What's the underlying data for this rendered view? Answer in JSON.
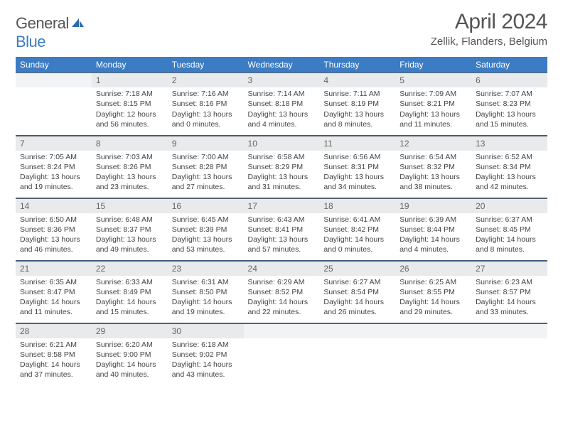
{
  "logo": {
    "text1": "General",
    "text2": "Blue"
  },
  "title": "April 2024",
  "location": "Zellik, Flanders, Belgium",
  "colors": {
    "header_bg": "#3b7cc4",
    "daynum_bg": "#e9eaeb",
    "text": "#444444",
    "rule": "#3b5a7a"
  },
  "day_headers": [
    "Sunday",
    "Monday",
    "Tuesday",
    "Wednesday",
    "Thursday",
    "Friday",
    "Saturday"
  ],
  "weeks": [
    [
      {
        "n": "",
        "sr": "",
        "ss": "",
        "dl": ""
      },
      {
        "n": "1",
        "sr": "Sunrise: 7:18 AM",
        "ss": "Sunset: 8:15 PM",
        "dl": "Daylight: 12 hours and 56 minutes."
      },
      {
        "n": "2",
        "sr": "Sunrise: 7:16 AM",
        "ss": "Sunset: 8:16 PM",
        "dl": "Daylight: 13 hours and 0 minutes."
      },
      {
        "n": "3",
        "sr": "Sunrise: 7:14 AM",
        "ss": "Sunset: 8:18 PM",
        "dl": "Daylight: 13 hours and 4 minutes."
      },
      {
        "n": "4",
        "sr": "Sunrise: 7:11 AM",
        "ss": "Sunset: 8:19 PM",
        "dl": "Daylight: 13 hours and 8 minutes."
      },
      {
        "n": "5",
        "sr": "Sunrise: 7:09 AM",
        "ss": "Sunset: 8:21 PM",
        "dl": "Daylight: 13 hours and 11 minutes."
      },
      {
        "n": "6",
        "sr": "Sunrise: 7:07 AM",
        "ss": "Sunset: 8:23 PM",
        "dl": "Daylight: 13 hours and 15 minutes."
      }
    ],
    [
      {
        "n": "7",
        "sr": "Sunrise: 7:05 AM",
        "ss": "Sunset: 8:24 PM",
        "dl": "Daylight: 13 hours and 19 minutes."
      },
      {
        "n": "8",
        "sr": "Sunrise: 7:03 AM",
        "ss": "Sunset: 8:26 PM",
        "dl": "Daylight: 13 hours and 23 minutes."
      },
      {
        "n": "9",
        "sr": "Sunrise: 7:00 AM",
        "ss": "Sunset: 8:28 PM",
        "dl": "Daylight: 13 hours and 27 minutes."
      },
      {
        "n": "10",
        "sr": "Sunrise: 6:58 AM",
        "ss": "Sunset: 8:29 PM",
        "dl": "Daylight: 13 hours and 31 minutes."
      },
      {
        "n": "11",
        "sr": "Sunrise: 6:56 AM",
        "ss": "Sunset: 8:31 PM",
        "dl": "Daylight: 13 hours and 34 minutes."
      },
      {
        "n": "12",
        "sr": "Sunrise: 6:54 AM",
        "ss": "Sunset: 8:32 PM",
        "dl": "Daylight: 13 hours and 38 minutes."
      },
      {
        "n": "13",
        "sr": "Sunrise: 6:52 AM",
        "ss": "Sunset: 8:34 PM",
        "dl": "Daylight: 13 hours and 42 minutes."
      }
    ],
    [
      {
        "n": "14",
        "sr": "Sunrise: 6:50 AM",
        "ss": "Sunset: 8:36 PM",
        "dl": "Daylight: 13 hours and 46 minutes."
      },
      {
        "n": "15",
        "sr": "Sunrise: 6:48 AM",
        "ss": "Sunset: 8:37 PM",
        "dl": "Daylight: 13 hours and 49 minutes."
      },
      {
        "n": "16",
        "sr": "Sunrise: 6:45 AM",
        "ss": "Sunset: 8:39 PM",
        "dl": "Daylight: 13 hours and 53 minutes."
      },
      {
        "n": "17",
        "sr": "Sunrise: 6:43 AM",
        "ss": "Sunset: 8:41 PM",
        "dl": "Daylight: 13 hours and 57 minutes."
      },
      {
        "n": "18",
        "sr": "Sunrise: 6:41 AM",
        "ss": "Sunset: 8:42 PM",
        "dl": "Daylight: 14 hours and 0 minutes."
      },
      {
        "n": "19",
        "sr": "Sunrise: 6:39 AM",
        "ss": "Sunset: 8:44 PM",
        "dl": "Daylight: 14 hours and 4 minutes."
      },
      {
        "n": "20",
        "sr": "Sunrise: 6:37 AM",
        "ss": "Sunset: 8:45 PM",
        "dl": "Daylight: 14 hours and 8 minutes."
      }
    ],
    [
      {
        "n": "21",
        "sr": "Sunrise: 6:35 AM",
        "ss": "Sunset: 8:47 PM",
        "dl": "Daylight: 14 hours and 11 minutes."
      },
      {
        "n": "22",
        "sr": "Sunrise: 6:33 AM",
        "ss": "Sunset: 8:49 PM",
        "dl": "Daylight: 14 hours and 15 minutes."
      },
      {
        "n": "23",
        "sr": "Sunrise: 6:31 AM",
        "ss": "Sunset: 8:50 PM",
        "dl": "Daylight: 14 hours and 19 minutes."
      },
      {
        "n": "24",
        "sr": "Sunrise: 6:29 AM",
        "ss": "Sunset: 8:52 PM",
        "dl": "Daylight: 14 hours and 22 minutes."
      },
      {
        "n": "25",
        "sr": "Sunrise: 6:27 AM",
        "ss": "Sunset: 8:54 PM",
        "dl": "Daylight: 14 hours and 26 minutes."
      },
      {
        "n": "26",
        "sr": "Sunrise: 6:25 AM",
        "ss": "Sunset: 8:55 PM",
        "dl": "Daylight: 14 hours and 29 minutes."
      },
      {
        "n": "27",
        "sr": "Sunrise: 6:23 AM",
        "ss": "Sunset: 8:57 PM",
        "dl": "Daylight: 14 hours and 33 minutes."
      }
    ],
    [
      {
        "n": "28",
        "sr": "Sunrise: 6:21 AM",
        "ss": "Sunset: 8:58 PM",
        "dl": "Daylight: 14 hours and 37 minutes."
      },
      {
        "n": "29",
        "sr": "Sunrise: 6:20 AM",
        "ss": "Sunset: 9:00 PM",
        "dl": "Daylight: 14 hours and 40 minutes."
      },
      {
        "n": "30",
        "sr": "Sunrise: 6:18 AM",
        "ss": "Sunset: 9:02 PM",
        "dl": "Daylight: 14 hours and 43 minutes."
      },
      {
        "n": "",
        "sr": "",
        "ss": "",
        "dl": ""
      },
      {
        "n": "",
        "sr": "",
        "ss": "",
        "dl": ""
      },
      {
        "n": "",
        "sr": "",
        "ss": "",
        "dl": ""
      },
      {
        "n": "",
        "sr": "",
        "ss": "",
        "dl": ""
      }
    ]
  ]
}
